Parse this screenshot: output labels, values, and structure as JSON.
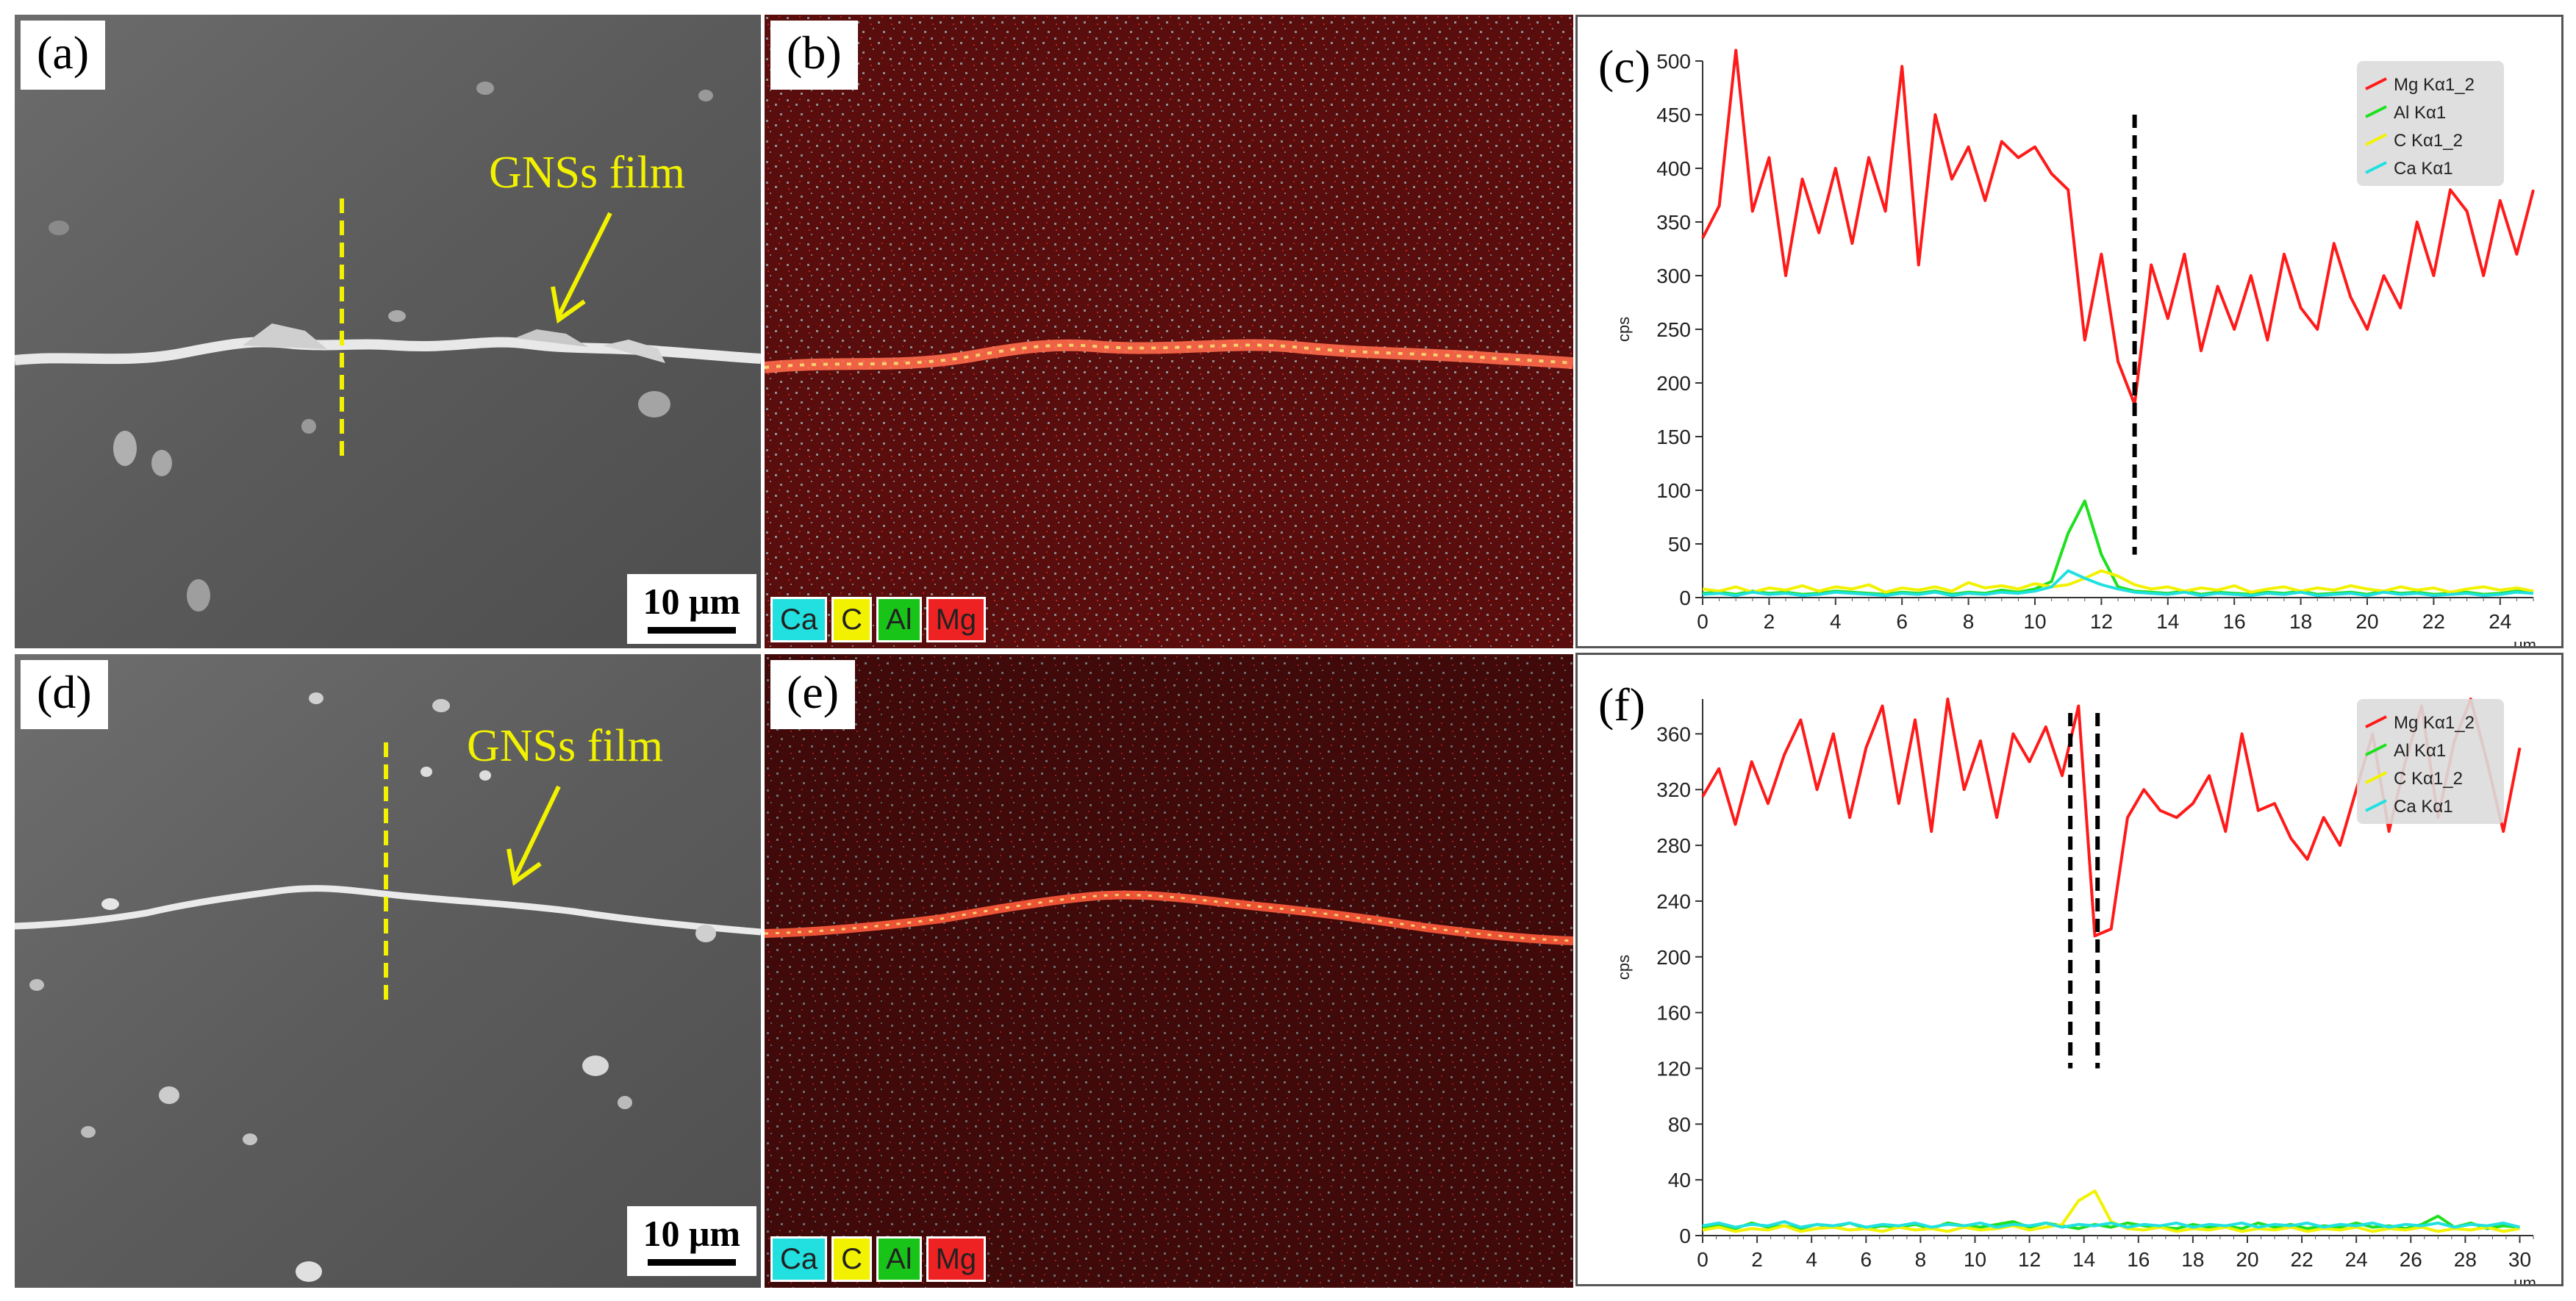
{
  "figure": {
    "panel_labels": [
      "(a)",
      "(b)",
      "(c)",
      "(d)",
      "(e)",
      "(f)"
    ],
    "annotation_text": "GNSs film",
    "scale_bar_label": "10 μm",
    "eds_elements": [
      {
        "label": "Ca",
        "color": "#22e0e0"
      },
      {
        "label": "C",
        "color": "#f2f200"
      },
      {
        "label": "Al",
        "color": "#19c419"
      },
      {
        "label": "Mg",
        "color": "#ee2222"
      }
    ]
  },
  "chart_data": [
    {
      "type": "line",
      "panel": "(c)",
      "xlabel": "μm",
      "ylabel": "cps",
      "xlim": [
        0,
        25
      ],
      "ylim": [
        0,
        500
      ],
      "xticks": [
        0,
        2,
        4,
        6,
        8,
        10,
        12,
        14,
        16,
        18,
        20,
        22,
        24
      ],
      "yticks": [
        0,
        50,
        100,
        150,
        200,
        250,
        300,
        350,
        400,
        450,
        500
      ],
      "dashed_lines_x": [
        13.0
      ],
      "x": [
        0.0,
        0.5,
        1.0,
        1.5,
        2.0,
        2.5,
        3.0,
        3.5,
        4.0,
        4.5,
        5.0,
        5.5,
        6.0,
        6.5,
        7.0,
        7.5,
        8.0,
        8.5,
        9.0,
        9.5,
        10.0,
        10.5,
        11.0,
        11.5,
        12.0,
        12.5,
        13.0,
        13.5,
        14.0,
        14.5,
        15.0,
        15.5,
        16.0,
        16.5,
        17.0,
        17.5,
        18.0,
        18.5,
        19.0,
        19.5,
        20.0,
        20.5,
        21.0,
        21.5,
        22.0,
        22.5,
        23.0,
        23.5,
        24.0,
        24.5,
        25.0
      ],
      "series": [
        {
          "name": "Mg Kα1_2",
          "color": "#ff1a1a",
          "values": [
            335,
            365,
            510,
            360,
            410,
            300,
            390,
            340,
            400,
            330,
            410,
            360,
            495,
            310,
            450,
            390,
            420,
            370,
            425,
            410,
            420,
            395,
            380,
            240,
            320,
            220,
            180,
            310,
            260,
            320,
            230,
            290,
            250,
            300,
            240,
            320,
            270,
            250,
            330,
            280,
            250,
            300,
            270,
            350,
            300,
            380,
            360,
            300,
            370,
            320,
            380
          ]
        },
        {
          "name": "Al Kα1",
          "color": "#1ee01e",
          "values": [
            4,
            5,
            3,
            6,
            4,
            5,
            3,
            4,
            6,
            5,
            4,
            3,
            5,
            4,
            6,
            3,
            5,
            4,
            7,
            5,
            8,
            15,
            60,
            90,
            40,
            10,
            6,
            5,
            4,
            6,
            3,
            5,
            4,
            3,
            5,
            4,
            6,
            3,
            4,
            5,
            3,
            6,
            4,
            5,
            3,
            4,
            5,
            3,
            4,
            6,
            5
          ]
        },
        {
          "name": "C Kα1_2",
          "color": "#f2f200",
          "values": [
            8,
            6,
            10,
            5,
            9,
            7,
            11,
            6,
            10,
            8,
            12,
            5,
            9,
            7,
            10,
            6,
            14,
            9,
            11,
            8,
            13,
            10,
            12,
            18,
            25,
            20,
            12,
            8,
            10,
            6,
            9,
            7,
            11,
            5,
            8,
            10,
            6,
            9,
            7,
            11,
            8,
            6,
            10,
            7,
            9,
            5,
            8,
            10,
            7,
            9,
            6
          ]
        },
        {
          "name": "Ca Kα1",
          "color": "#22e0e0",
          "values": [
            3,
            4,
            2,
            5,
            3,
            4,
            2,
            3,
            5,
            4,
            3,
            2,
            4,
            3,
            5,
            2,
            4,
            3,
            5,
            4,
            6,
            10,
            25,
            18,
            12,
            8,
            5,
            4,
            3,
            5,
            2,
            4,
            3,
            2,
            4,
            3,
            5,
            2,
            3,
            4,
            2,
            5,
            3,
            4,
            2,
            3,
            4,
            2,
            3,
            5,
            4
          ]
        }
      ]
    },
    {
      "type": "line",
      "panel": "(f)",
      "xlabel": "μm",
      "ylabel": "cps",
      "xlim": [
        0,
        30.5
      ],
      "ylim": [
        0,
        385
      ],
      "xticks": [
        0,
        2,
        4,
        6,
        8,
        10,
        12,
        14,
        16,
        18,
        20,
        22,
        24,
        26,
        28,
        30
      ],
      "yticks": [
        0,
        40,
        80,
        120,
        160,
        200,
        240,
        280,
        320,
        360
      ],
      "dashed_lines_x": [
        13.5,
        14.5
      ],
      "x": [
        0.0,
        0.6,
        1.2,
        1.8,
        2.4,
        3.0,
        3.6,
        4.2,
        4.8,
        5.4,
        6.0,
        6.6,
        7.2,
        7.8,
        8.4,
        9.0,
        9.6,
        10.2,
        10.8,
        11.4,
        12.0,
        12.6,
        13.2,
        13.8,
        14.4,
        15.0,
        15.6,
        16.2,
        16.8,
        17.4,
        18.0,
        18.6,
        19.2,
        19.8,
        20.4,
        21.0,
        21.6,
        22.2,
        22.8,
        23.4,
        24.0,
        24.6,
        25.2,
        25.8,
        26.4,
        27.0,
        27.6,
        28.2,
        28.8,
        29.4,
        30.0
      ],
      "series": [
        {
          "name": "Mg Kα1_2",
          "color": "#ff1a1a",
          "values": [
            315,
            335,
            295,
            340,
            310,
            345,
            370,
            320,
            360,
            300,
            350,
            380,
            310,
            370,
            290,
            385,
            320,
            355,
            300,
            360,
            340,
            365,
            330,
            380,
            215,
            220,
            300,
            320,
            305,
            300,
            310,
            330,
            290,
            360,
            305,
            310,
            285,
            270,
            300,
            280,
            320,
            360,
            290,
            340,
            380,
            300,
            355,
            385,
            340,
            290,
            350
          ]
        },
        {
          "name": "Al Kα1",
          "color": "#1ee01e",
          "values": [
            6,
            8,
            5,
            9,
            6,
            7,
            5,
            8,
            6,
            9,
            5,
            7,
            6,
            8,
            5,
            9,
            7,
            6,
            8,
            10,
            6,
            9,
            7,
            5,
            8,
            6,
            9,
            7,
            6,
            5,
            8,
            6,
            7,
            5,
            9,
            6,
            8,
            5,
            7,
            6,
            9,
            6,
            7,
            5,
            8,
            14,
            6,
            9,
            5,
            7,
            6
          ]
        },
        {
          "name": "C Kα1_2",
          "color": "#f2f200",
          "values": [
            4,
            6,
            3,
            5,
            4,
            7,
            3,
            5,
            6,
            4,
            5,
            3,
            6,
            4,
            5,
            3,
            6,
            4,
            5,
            7,
            4,
            6,
            8,
            25,
            32,
            10,
            5,
            4,
            6,
            3,
            5,
            4,
            6,
            3,
            5,
            4,
            6,
            3,
            5,
            4,
            6,
            3,
            5,
            4,
            6,
            3,
            5,
            4,
            6,
            3,
            5
          ]
        },
        {
          "name": "Ca Kα1",
          "color": "#22e0e0",
          "values": [
            7,
            9,
            6,
            8,
            7,
            10,
            6,
            8,
            7,
            9,
            6,
            8,
            7,
            9,
            6,
            8,
            7,
            9,
            6,
            8,
            7,
            9,
            6,
            8,
            7,
            9,
            6,
            8,
            7,
            9,
            6,
            8,
            7,
            9,
            6,
            8,
            7,
            9,
            6,
            8,
            7,
            9,
            6,
            8,
            7,
            9,
            6,
            8,
            7,
            9,
            6
          ]
        }
      ]
    }
  ]
}
